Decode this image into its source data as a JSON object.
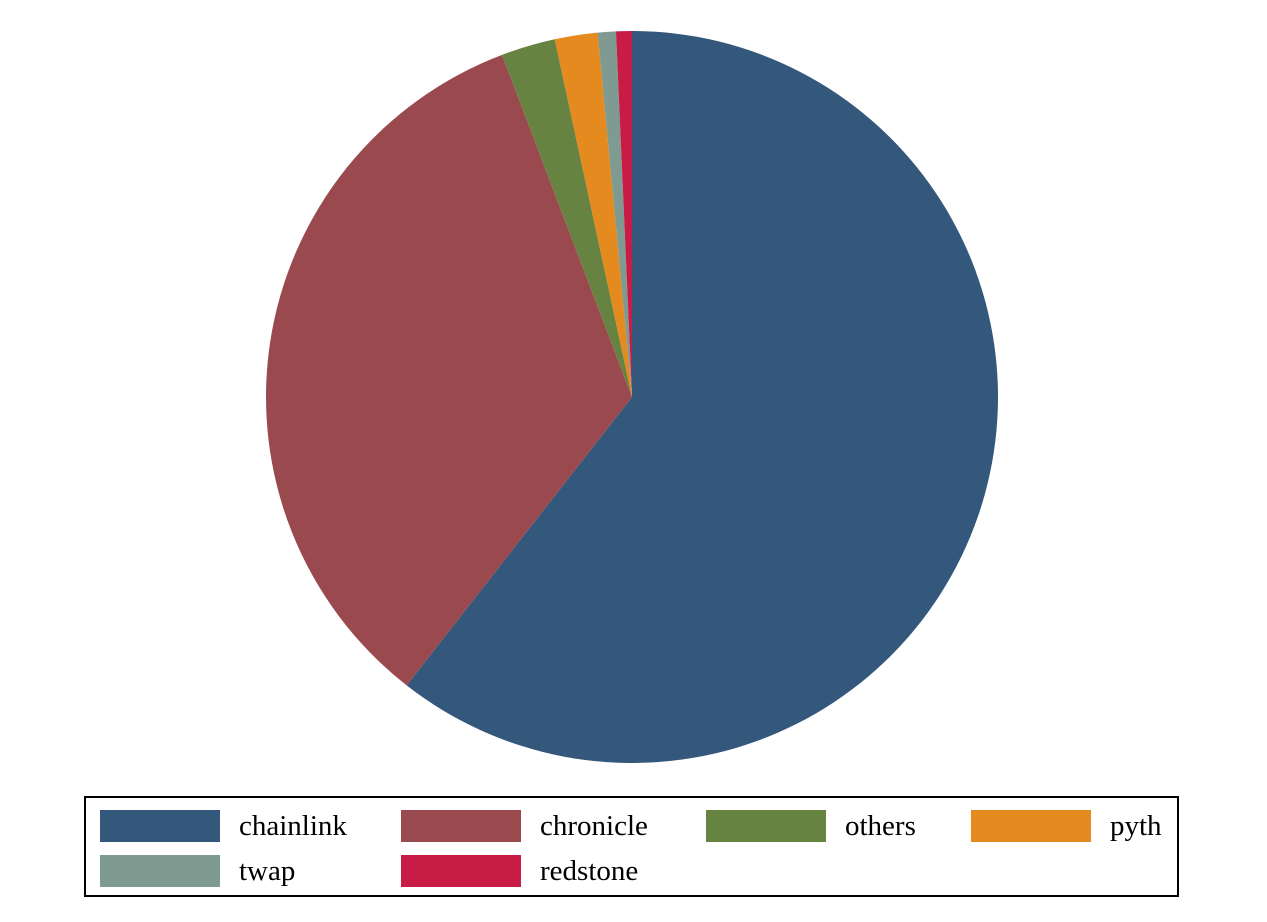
{
  "chart_data": {
    "type": "pie",
    "title": "",
    "legend_position": "bottom",
    "start_angle_deg": 0,
    "direction": "clockwise",
    "slices": [
      {
        "label": "chainlink",
        "value": 60.8,
        "color": "#33587c"
      },
      {
        "label": "chronicle",
        "value": 33.8,
        "color": "#9a4a4f"
      },
      {
        "label": "others",
        "value": 2.4,
        "color": "#678342"
      },
      {
        "label": "pyth",
        "value": 1.9,
        "color": "#e58a1f"
      },
      {
        "label": "twap",
        "value": 0.8,
        "color": "#7f9a90"
      },
      {
        "label": "redstone",
        "value": 0.7,
        "color": "#c81c47"
      }
    ]
  }
}
